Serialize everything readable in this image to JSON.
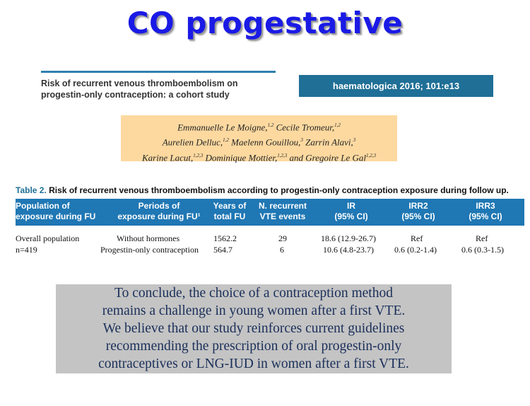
{
  "slide": {
    "title": "CO progestative"
  },
  "article": {
    "title_line1": "Risk of recurrent venous thromboembolism on",
    "title_line2": "progestin-only contraception: a cohort study",
    "journal": "haematologica 2016; 101:e13"
  },
  "authors": {
    "line1": "Emmanuelle Le Moigne,",
    "line1_sup": "1,2",
    "line1b": "Cecile Tromeur,",
    "line1b_sup": "1,2",
    "line2a": "Aurelien Delluc,",
    "line2a_sup": "1,2",
    "line2b": "Maelenn Gouillou,",
    "line2b_sup": "3",
    "line2c": "Zarrin Alavi,",
    "line2c_sup": "3",
    "line3a": "Karine Lacut,",
    "line3a_sup": "1,2,3",
    "line3b": "Dominique Mottier,",
    "line3b_sup": "1,2,3",
    "line3c": "and Gregoire Le Gal",
    "line3c_sup": "1,2,3"
  },
  "table": {
    "caption_label": "Table 2.",
    "caption_text": "Risk of recurrent venous thromboembolism according to progestin-only contraception exposure during follow up.",
    "headers": [
      [
        "Population of",
        "exposure during FU"
      ],
      [
        "Periods of",
        "exposure during FU¹"
      ],
      [
        "Years of",
        "total FU"
      ],
      [
        "N. recurrent",
        "VTE events"
      ],
      [
        "IR",
        "(95% CI)"
      ],
      [
        "IRR2",
        "(95% CI)"
      ],
      [
        "IRR3",
        "(95% CI)"
      ]
    ],
    "rows": [
      [
        "Overall population",
        "Without hormones",
        "1562.2",
        "29",
        "18.6 (12.9-26.7)",
        "Ref",
        "Ref"
      ],
      [
        "n=419",
        "Progestin-only contraception",
        "564.7",
        "6",
        "10.6 (4.8-23.7)",
        "0.6 (0.2-1.4)",
        "0.6 (0.3-1.5)"
      ]
    ]
  },
  "conclusion": {
    "lines": [
      "To conclude, the choice of a contraception method",
      "remains a challenge in young women after a first VTE.",
      "We believe that our study reinforces current guidelines",
      "recommending the prescription of oral progestin-only",
      "contraceptives or LNG-IUD in women after a first VTE."
    ]
  },
  "colors": {
    "title": "#1a1ae6",
    "journal_bg": "#1f6f96",
    "authors_bg": "#fdd9a0",
    "table_header_bg": "#1f77b4",
    "conclusion_bg": "#c4c4c4"
  }
}
